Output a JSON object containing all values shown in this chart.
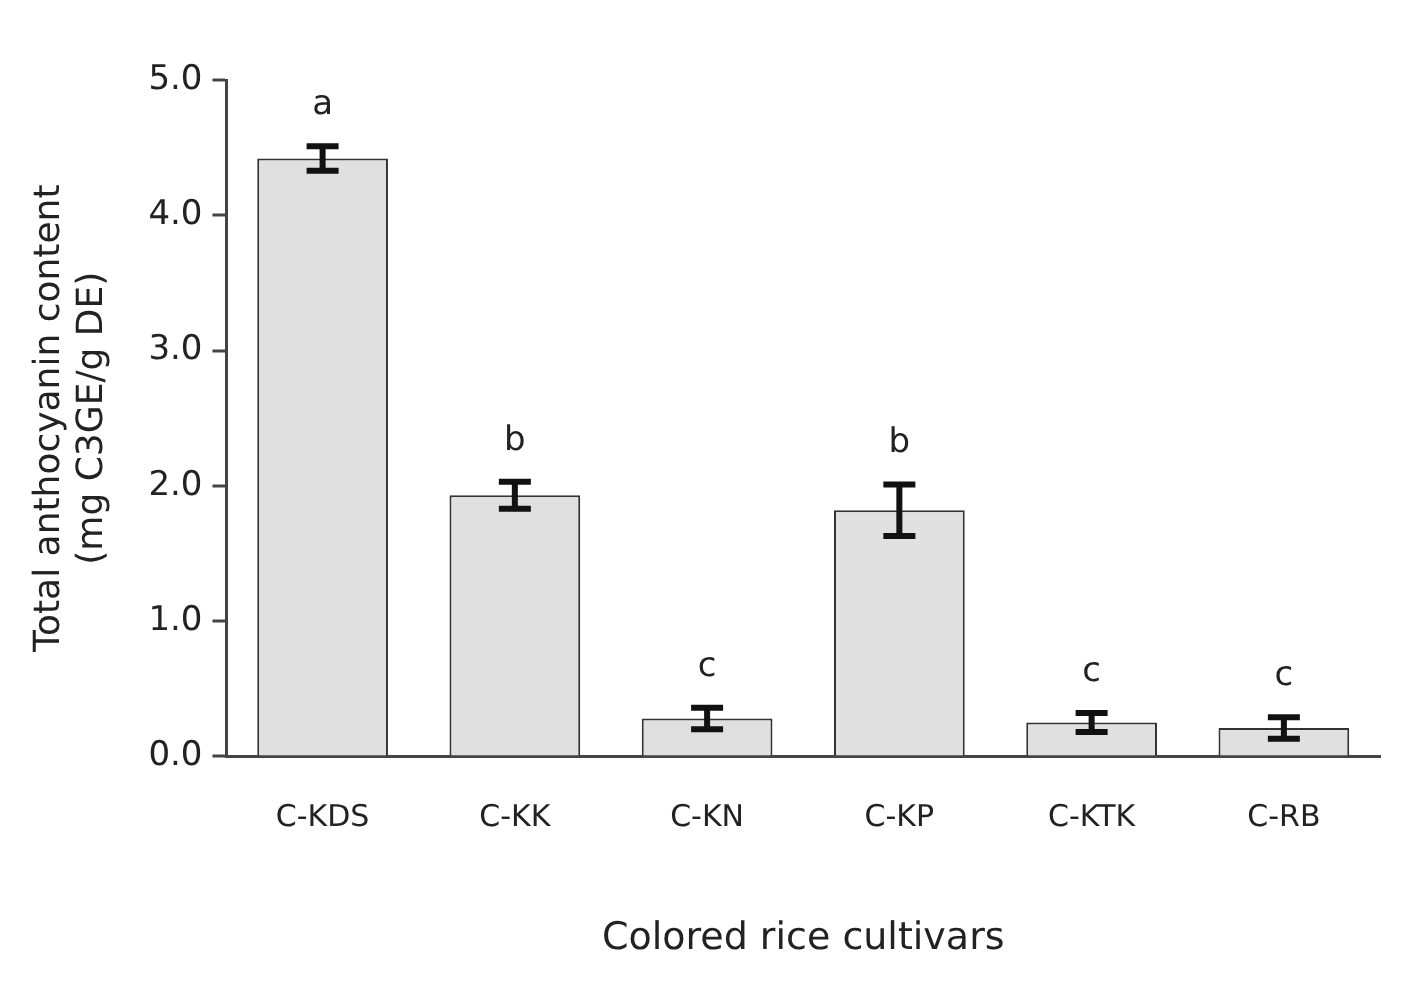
{
  "chart_data": {
    "type": "bar",
    "xlabel": "Colored rice cultivars",
    "ylabel": "Total anthocyanin content\n(mg C3GE/g DE)",
    "categories": [
      "C-KDS",
      "C-KK",
      "C-KN",
      "C-KP",
      "C-KTK",
      "C-RB"
    ],
    "values": [
      4.42,
      1.93,
      0.28,
      1.82,
      0.25,
      0.21
    ],
    "errors": [
      0.09,
      0.1,
      0.08,
      0.19,
      0.07,
      0.08
    ],
    "color": "#e0e0e0",
    "ylim": [
      0,
      5
    ],
    "yticks": [
      {
        "value": 0,
        "label": "0.0"
      },
      {
        "value": 1,
        "label": "1.0"
      },
      {
        "value": 2,
        "label": "2.0"
      },
      {
        "value": 3,
        "label": "3.0"
      },
      {
        "value": 4,
        "label": "4.0"
      },
      {
        "value": 5,
        "label": "5.0"
      }
    ],
    "grid": false,
    "legend": false,
    "annotations": [
      {
        "text": "a",
        "x": "C-KDS",
        "y": 4.51
      },
      {
        "text": "b",
        "x": "C-KK",
        "y": 2.03
      },
      {
        "text": "c",
        "x": "C-KN",
        "y": 0.36
      },
      {
        "text": "b",
        "x": "C-KP",
        "y": 2.01
      },
      {
        "text": "c",
        "x": "C-KTK",
        "y": 0.32
      },
      {
        "text": "c",
        "x": "C-RB",
        "y": 0.29
      }
    ]
  }
}
